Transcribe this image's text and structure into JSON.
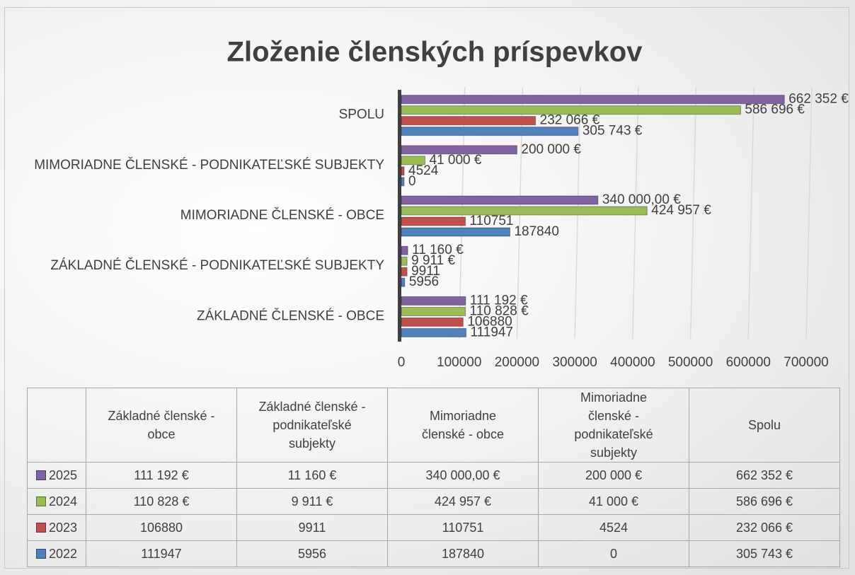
{
  "chart_data": {
    "type": "bar",
    "orientation": "horizontal",
    "title": "Zloženie členských príspevkov",
    "categories": [
      "Základné členské - obce",
      "Základné členské - podnikateľské subjekty",
      "Mimoriadne členské - obce",
      "Mimoriadne členské - podnikateľské subjekty",
      "Spolu"
    ],
    "series": [
      {
        "name": "2025",
        "color": "#8064a2",
        "values": [
          111192,
          11160,
          340000,
          200000,
          662352
        ],
        "value_labels": [
          "111 192 €",
          "11 160 €",
          "340 000,00 €",
          "200 000 €",
          "662 352 €"
        ]
      },
      {
        "name": "2024",
        "color": "#9bbb59",
        "values": [
          110828,
          9911,
          424957,
          41000,
          586696
        ],
        "value_labels": [
          "110 828 €",
          "9 911 €",
          "424 957 €",
          "41 000 €",
          "586 696 €"
        ]
      },
      {
        "name": "2023",
        "color": "#c0504d",
        "values": [
          106880,
          9911,
          110751,
          4524,
          232066
        ],
        "value_labels": [
          "106880",
          "9911",
          "110751",
          "4524",
          "232 066 €"
        ]
      },
      {
        "name": "2022",
        "color": "#4f81bd",
        "values": [
          111947,
          5956,
          187840,
          0,
          305743
        ],
        "value_labels": [
          "111947",
          "5956",
          "187840",
          "0",
          "305 743 €"
        ]
      }
    ],
    "xlim": [
      0,
      700000
    ],
    "xticks": [
      0,
      100000,
      200000,
      300000,
      400000,
      500000,
      600000,
      700000
    ],
    "grid": true
  }
}
